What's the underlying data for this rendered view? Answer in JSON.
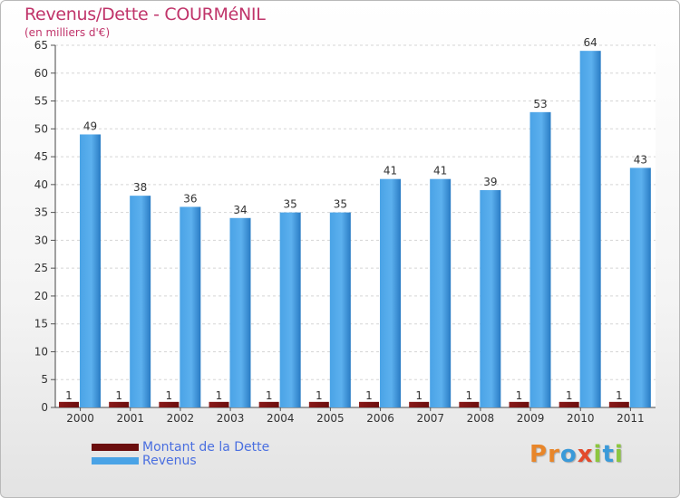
{
  "title": "Revenus/Dette - COURMéNIL",
  "subtitle": "(en milliers d'€)",
  "colors": {
    "dette": "#6b0e0e",
    "revenus": "#4aa3e6",
    "revenus_dark": "#2a7cc4",
    "title": "#c0346a"
  },
  "legend": [
    {
      "label": "Montant de la Dette",
      "color": "#6b0e0e"
    },
    {
      "label": "Revenus",
      "color": "#4aa3e6"
    }
  ],
  "logo": {
    "text": "Proxiti",
    "letters": [
      "P",
      "r",
      "o",
      "x",
      "i",
      "t",
      "i"
    ],
    "colors": [
      "#e8862a",
      "#e8862a",
      "#3a9ad9",
      "#e34a2c",
      "#8cc63f",
      "#3a9ad9",
      "#8cc63f"
    ]
  },
  "chart_data": {
    "type": "bar",
    "title": "Revenus/Dette - COURMéNIL",
    "ylabel": "(en milliers d'€)",
    "categories": [
      "2000",
      "2001",
      "2002",
      "2003",
      "2004",
      "2005",
      "2006",
      "2007",
      "2008",
      "2009",
      "2010",
      "2011"
    ],
    "series": [
      {
        "name": "Montant de la Dette",
        "values": [
          1,
          1,
          1,
          1,
          1,
          1,
          1,
          1,
          1,
          1,
          1,
          1
        ]
      },
      {
        "name": "Revenus",
        "values": [
          49,
          38,
          36,
          34,
          35,
          35,
          41,
          41,
          39,
          53,
          64,
          43
        ]
      }
    ],
    "ylim": [
      0,
      65
    ],
    "yticks": [
      0,
      5,
      10,
      15,
      20,
      25,
      30,
      35,
      40,
      45,
      50,
      55,
      60,
      65
    ],
    "grid": true,
    "legend_position": "bottom-left"
  }
}
